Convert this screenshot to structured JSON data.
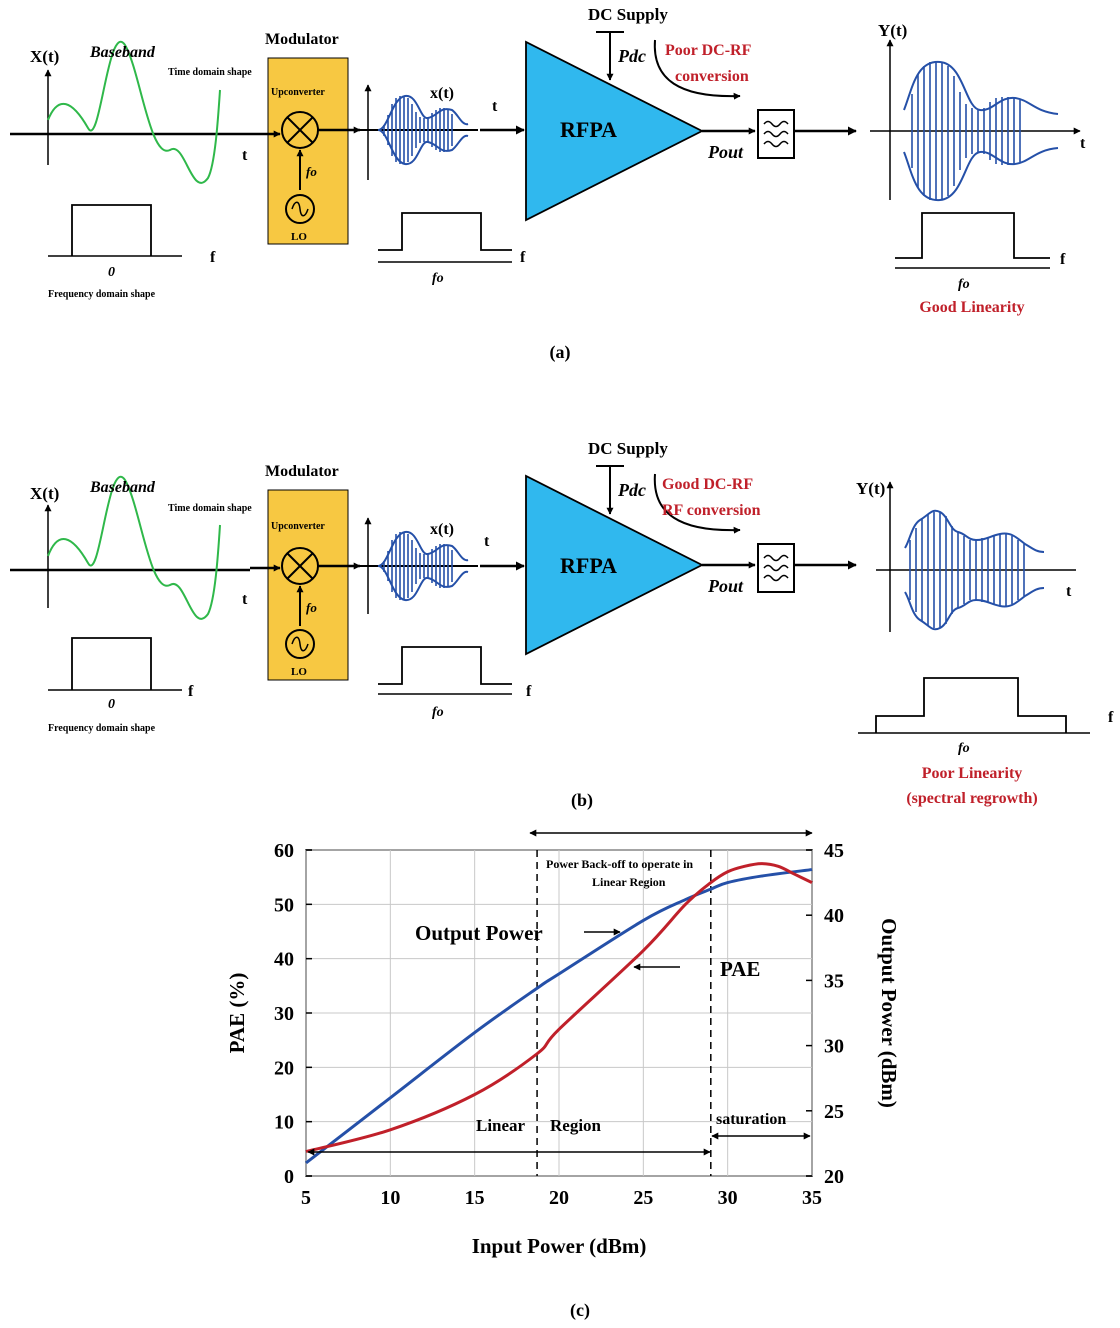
{
  "colors": {
    "green": "#2fb84a",
    "blue": "#2550a8",
    "red": "#c0202a",
    "cyan": "#30b8ee",
    "modulator_fill": "#f7c842",
    "axis": "#000000"
  },
  "panel_a": {
    "caption": "(a)",
    "x_label": "X(t)",
    "baseband": "Baseband",
    "time_shape": "Time domain shape",
    "freq_shape": "Frequency domain shape",
    "t": "t",
    "f": "f",
    "zero": "0",
    "modulator": "Modulator",
    "upconverter": "Upconverter",
    "fo": "fo",
    "lo": "LO",
    "xt": "x(t)",
    "t2": "t",
    "fo_axis": "fo",
    "f2": "f",
    "dc_supply": "DC Supply",
    "pdc": "Pdc",
    "conversion_line1": "Poor DC-RF",
    "conversion_line2": "conversion",
    "rfpa": "RFPA",
    "pout": "Pout",
    "y_label": "Y(t)",
    "t3": "t",
    "fo_out": "fo",
    "f3": "f",
    "linearity_line1": "Good Linearity",
    "linearity_line2": ""
  },
  "panel_b": {
    "caption": "(b)",
    "x_label": "X(t)",
    "baseband": "Baseband",
    "time_shape": "Time domain shape",
    "freq_shape": "Frequency domain shape",
    "t": "t",
    "f": "f",
    "zero": "0",
    "modulator": "Modulator",
    "upconverter": "Upconverter",
    "fo": "fo",
    "lo": "LO",
    "xt": "x(t)",
    "t2": "t",
    "fo_axis": "fo",
    "f2": "f",
    "dc_supply": "DC Supply",
    "pdc": "Pdc",
    "conversion_line1": "Good DC-RF",
    "conversion_line2": "RF conversion",
    "rfpa": "RFPA",
    "pout": "Pout",
    "y_label": "Y(t)",
    "t3": "t",
    "fo_out": "fo",
    "f3": "f",
    "linearity_line1": "Poor Linearity",
    "linearity_line2": "(spectral regrowth)"
  },
  "chart_data": {
    "type": "line",
    "caption": "(c)",
    "xlabel": "Input Power (dBm)",
    "ylabel_left": "PAE (%)",
    "ylabel_right": "Output Power (dBm)",
    "xlim": [
      5,
      35
    ],
    "ylim_left": [
      0,
      60
    ],
    "ylim_right": [
      20,
      45
    ],
    "x_ticks": [
      "5",
      "10",
      "15",
      "20",
      "25",
      "30",
      "35"
    ],
    "y_left_ticks": [
      "0",
      "10",
      "20",
      "30",
      "40",
      "50",
      "60"
    ],
    "y_right_ticks": [
      "20",
      "25",
      "30",
      "35",
      "40",
      "45"
    ],
    "grid": true,
    "series": [
      {
        "name": "Output Power",
        "axis": "right",
        "color": "#2550a8",
        "x": [
          5,
          10,
          15,
          18.7,
          20,
          25,
          27.5,
          29,
          30,
          32,
          35
        ],
        "y": [
          21.0,
          26.0,
          31.0,
          34.4,
          35.5,
          39.6,
          41.2,
          42.0,
          42.5,
          43.0,
          43.5
        ]
      },
      {
        "name": "PAE",
        "axis": "left",
        "color": "#c0202a",
        "x": [
          5,
          10,
          15,
          18.7,
          20,
          25,
          27.5,
          29,
          30,
          31,
          32,
          33,
          34,
          35
        ],
        "y": [
          4.5,
          8.5,
          15.0,
          22.5,
          27.0,
          41.5,
          50.0,
          54.0,
          56.0,
          57.0,
          57.5,
          57.0,
          55.5,
          54.0
        ]
      }
    ],
    "annotations": {
      "backoff_line1": "Power Back-off to operate in",
      "backoff_line2": "Linear Region",
      "output_power_label": "Output Power",
      "pae_label": "PAE",
      "linear": "Linear",
      "region": "Region",
      "saturation": "saturation",
      "backoff_x": 18.7,
      "sat_x": 29
    }
  }
}
